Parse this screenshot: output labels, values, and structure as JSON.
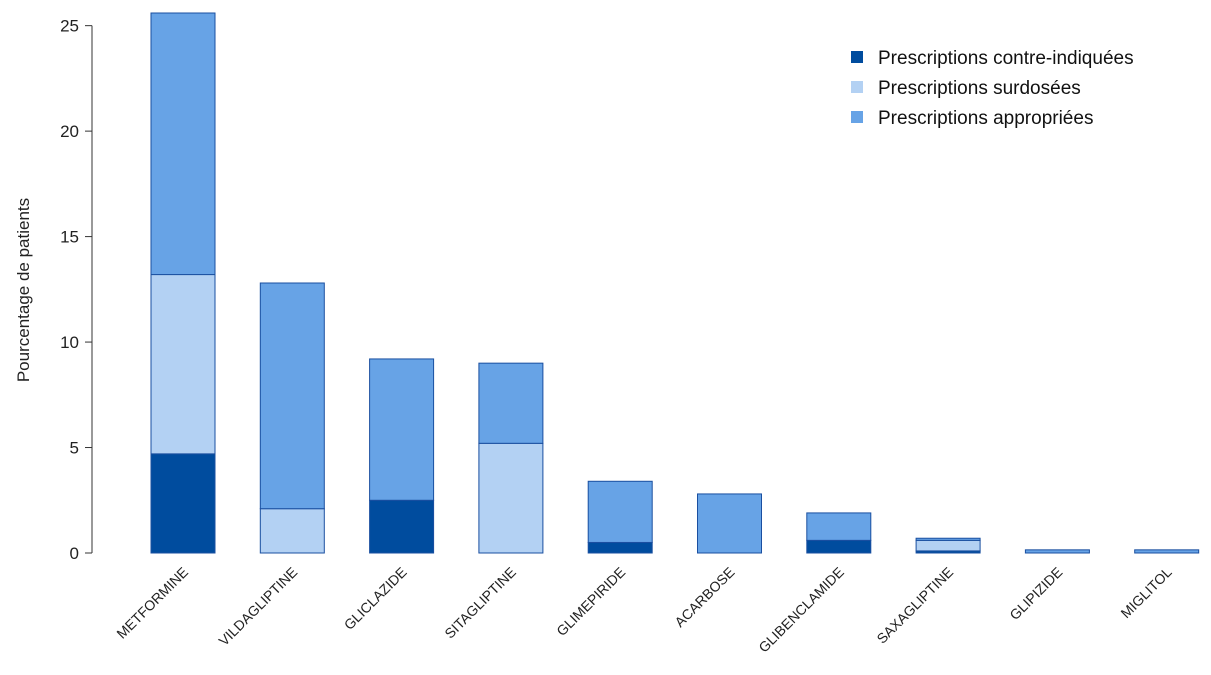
{
  "chart_data": {
    "type": "bar",
    "stacked": true,
    "title": "",
    "xlabel": "",
    "ylabel": "Pourcentage de patients",
    "ylim": [
      0,
      25.6
    ],
    "yticks": [
      0,
      5,
      10,
      15,
      20,
      25
    ],
    "grid": false,
    "legend_position": "top-right",
    "categories": [
      "METFORMINE",
      "VILDAGLIPTINE",
      "GLICLAZIDE",
      "SITAGLIPTINE",
      "GLIMEPIRIDE",
      "ACARBOSE",
      "GLIBENCLAMIDE",
      "SAXAGLIPTINE",
      "GLIPIZIDE",
      "MIGLITOL"
    ],
    "series": [
      {
        "name": "Prescriptions contre-indiquées",
        "color": "#004c9e",
        "values": [
          4.7,
          0,
          2.5,
          0,
          0.5,
          0,
          0.6,
          0.1,
          0,
          0
        ]
      },
      {
        "name": "Prescriptions surdosées",
        "color": "#b3d1f3",
        "values": [
          8.5,
          2.1,
          0,
          5.2,
          0,
          0,
          0,
          0.5,
          0,
          0
        ]
      },
      {
        "name": "Prescriptions appropriées",
        "color": "#67a3e6",
        "values": [
          12.4,
          10.7,
          6.7,
          3.8,
          2.9,
          2.8,
          1.3,
          0.1,
          0.15,
          0.15
        ]
      }
    ]
  }
}
